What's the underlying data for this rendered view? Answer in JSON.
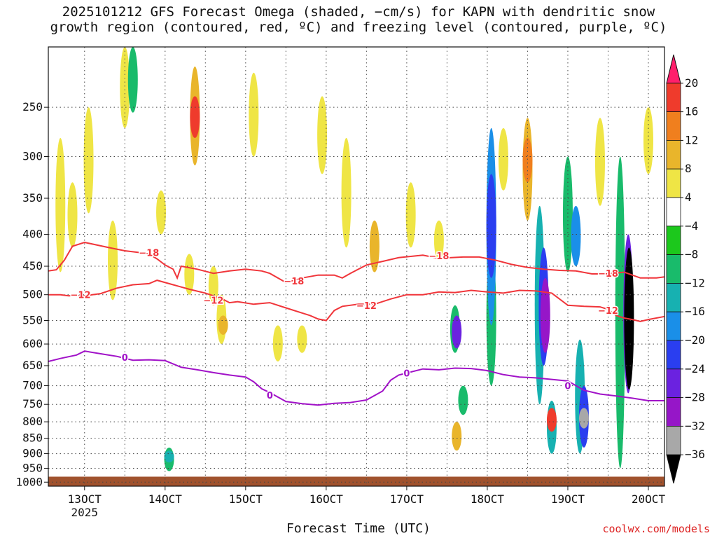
{
  "chart_data": {
    "type": "heatmap",
    "title_line1": "2025101212 GFS Forecast Omega (shaded, −cm/s) for KAPN with dendritic snow",
    "title_line2": "growth region (contoured, red, ºC) and freezing level (contoured, purple, ºC)",
    "xlabel": "Forecast Time (UTC)",
    "x_ticks": [
      "13OCT",
      "14OCT",
      "15OCT",
      "16OCT",
      "17OCT",
      "18OCT",
      "19OCT",
      "20OCT"
    ],
    "x_year_label": "2025",
    "x_range_hours": [
      -4.5,
      72
    ],
    "y_ticks": [
      250,
      300,
      350,
      400,
      450,
      500,
      550,
      600,
      650,
      700,
      750,
      800,
      850,
      900,
      950,
      1000
    ],
    "y_range_hpa": [
      200,
      1015
    ],
    "y_scale": "log-pressure",
    "grid": "dotted",
    "colorbar": {
      "labels": [
        "20",
        "16",
        "12",
        "8",
        "4",
        "−4",
        "−8",
        "−12",
        "−16",
        "−20",
        "−24",
        "−28",
        "−32",
        "−36"
      ],
      "colors": [
        "#ff1f6b",
        "#ef3b2c",
        "#f07f1e",
        "#e9b52b",
        "#efe545",
        "#ffffff",
        "#1cc81c",
        "#19bb6b",
        "#17b1b1",
        "#1a8fe8",
        "#2a3ef0",
        "#6b22e0",
        "#9616c8",
        "#a8a8a8",
        "#000000"
      ]
    },
    "contours": [
      {
        "label": "−18",
        "color": "#f0353a",
        "points": [
          [
            -4.5,
            458
          ],
          [
            -3.5,
            456
          ],
          [
            -2.5,
            440
          ],
          [
            -1.5,
            418
          ],
          [
            0,
            412
          ],
          [
            3,
            420
          ],
          [
            5,
            425
          ],
          [
            7,
            428
          ],
          [
            8,
            430
          ],
          [
            9,
            438
          ],
          [
            10,
            448
          ],
          [
            11,
            455
          ],
          [
            11.5,
            470
          ],
          [
            12,
            450
          ],
          [
            14,
            455
          ],
          [
            16,
            462
          ],
          [
            18,
            458
          ],
          [
            20,
            455
          ],
          [
            22,
            458
          ],
          [
            23,
            462
          ],
          [
            24,
            470
          ],
          [
            25,
            478
          ],
          [
            27,
            470
          ],
          [
            29,
            465
          ],
          [
            31,
            465
          ],
          [
            32,
            470
          ],
          [
            33,
            462
          ],
          [
            35,
            448
          ],
          [
            37,
            442
          ],
          [
            39,
            436
          ],
          [
            42,
            432
          ],
          [
            44,
            437
          ],
          [
            47,
            435
          ],
          [
            49,
            435
          ],
          [
            51,
            440
          ],
          [
            53,
            447
          ],
          [
            55,
            452
          ],
          [
            57,
            455
          ],
          [
            59,
            457
          ],
          [
            61,
            458
          ],
          [
            63,
            463
          ],
          [
            65,
            463
          ],
          [
            67,
            460
          ],
          [
            69,
            470
          ],
          [
            71,
            470
          ],
          [
            72,
            468
          ]
        ],
        "labels_at": [
          [
            8,
            428
          ],
          [
            26,
            475
          ],
          [
            44,
            433
          ],
          [
            65,
            462
          ]
        ]
      },
      {
        "label": "−12",
        "color": "#f0353a",
        "points": [
          [
            -4.5,
            500
          ],
          [
            -3,
            500
          ],
          [
            -2,
            502
          ],
          [
            0,
            502
          ],
          [
            2,
            498
          ],
          [
            4,
            488
          ],
          [
            6,
            482
          ],
          [
            8,
            480
          ],
          [
            9,
            474
          ],
          [
            11,
            482
          ],
          [
            13,
            490
          ],
          [
            15,
            497
          ],
          [
            17,
            507
          ],
          [
            18,
            515
          ],
          [
            19,
            513
          ],
          [
            21,
            518
          ],
          [
            23,
            515
          ],
          [
            25,
            525
          ],
          [
            27,
            535
          ],
          [
            28,
            540
          ],
          [
            29,
            547
          ],
          [
            30,
            550
          ],
          [
            31,
            530
          ],
          [
            32,
            522
          ],
          [
            34,
            518
          ],
          [
            36,
            518
          ],
          [
            38,
            508
          ],
          [
            40,
            500
          ],
          [
            42,
            500
          ],
          [
            44,
            495
          ],
          [
            46,
            496
          ],
          [
            48,
            492
          ],
          [
            50,
            495
          ],
          [
            52,
            497
          ],
          [
            54,
            492
          ],
          [
            56,
            493
          ],
          [
            58,
            497
          ],
          [
            60,
            520
          ],
          [
            62,
            522
          ],
          [
            64,
            523
          ],
          [
            65,
            528
          ],
          [
            66,
            540
          ],
          [
            67,
            545
          ],
          [
            68,
            548
          ],
          [
            69,
            552
          ],
          [
            70,
            548
          ],
          [
            72,
            542
          ]
        ],
        "labels_at": [
          [
            -0.5,
            500
          ],
          [
            16,
            510
          ],
          [
            35,
            520
          ],
          [
            65,
            530
          ]
        ]
      },
      {
        "label": "0",
        "color": "#a112c8",
        "points": [
          [
            -4.5,
            640
          ],
          [
            -3,
            633
          ],
          [
            -1,
            625
          ],
          [
            0,
            616
          ],
          [
            2,
            622
          ],
          [
            4,
            628
          ],
          [
            6,
            637
          ],
          [
            8,
            636
          ],
          [
            10,
            638
          ],
          [
            12,
            654
          ],
          [
            14,
            660
          ],
          [
            16,
            667
          ],
          [
            18,
            673
          ],
          [
            20,
            678
          ],
          [
            21,
            690
          ],
          [
            22,
            708
          ],
          [
            23,
            718
          ],
          [
            24,
            730
          ],
          [
            25,
            742
          ],
          [
            27,
            748
          ],
          [
            29,
            752
          ],
          [
            31,
            747
          ],
          [
            33,
            745
          ],
          [
            35,
            738
          ],
          [
            37,
            714
          ],
          [
            38,
            686
          ],
          [
            39,
            673
          ],
          [
            40,
            668
          ],
          [
            42,
            658
          ],
          [
            44,
            660
          ],
          [
            46,
            656
          ],
          [
            48,
            657
          ],
          [
            50,
            662
          ],
          [
            52,
            672
          ],
          [
            54,
            678
          ],
          [
            56,
            680
          ],
          [
            58,
            684
          ],
          [
            60,
            688
          ],
          [
            62,
            712
          ],
          [
            64,
            722
          ],
          [
            66,
            727
          ],
          [
            68,
            733
          ],
          [
            70,
            740
          ],
          [
            72,
            740
          ]
        ],
        "labels_at": [
          [
            5,
            630
          ],
          [
            23,
            725
          ],
          [
            40,
            668
          ],
          [
            60,
            700
          ]
        ]
      }
    ],
    "shaded_cells": [
      {
        "x": -3.0,
        "p1": 280,
        "p2": 460,
        "value": 6
      },
      {
        "x": -1.5,
        "p1": 330,
        "p2": 420,
        "value": 6
      },
      {
        "x": 0.5,
        "p1": 250,
        "p2": 370,
        "value": 6
      },
      {
        "x": 3.5,
        "p1": 380,
        "p2": 510,
        "value": 5
      },
      {
        "x": 5.0,
        "p1": 200,
        "p2": 270,
        "value": 6
      },
      {
        "x": 6.0,
        "p1": 200,
        "p2": 255,
        "value": -10
      },
      {
        "x": 9.5,
        "p1": 340,
        "p2": 400,
        "value": 5
      },
      {
        "x": 10.5,
        "p1": 880,
        "p2": 960,
        "value": -10
      },
      {
        "x": 10.5,
        "p1": 890,
        "p2": 930,
        "value": -14
      },
      {
        "x": 13.0,
        "p1": 430,
        "p2": 500,
        "value": 6
      },
      {
        "x": 13.7,
        "p1": 215,
        "p2": 310,
        "value": 9
      },
      {
        "x": 13.7,
        "p1": 240,
        "p2": 280,
        "value": 17
      },
      {
        "x": 16.0,
        "p1": 450,
        "p2": 520,
        "value": 6
      },
      {
        "x": 17.0,
        "p1": 500,
        "p2": 600,
        "value": 6
      },
      {
        "x": 17.2,
        "p1": 540,
        "p2": 580,
        "value": 10
      },
      {
        "x": 21.0,
        "p1": 220,
        "p2": 300,
        "value": 6
      },
      {
        "x": 24.0,
        "p1": 560,
        "p2": 640,
        "value": 6
      },
      {
        "x": 27.0,
        "p1": 560,
        "p2": 620,
        "value": 6
      },
      {
        "x": 29.5,
        "p1": 240,
        "p2": 320,
        "value": 6
      },
      {
        "x": 32.5,
        "p1": 280,
        "p2": 420,
        "value": 6
      },
      {
        "x": 36.0,
        "p1": 380,
        "p2": 460,
        "value": 9
      },
      {
        "x": 40.5,
        "p1": 330,
        "p2": 420,
        "value": 6
      },
      {
        "x": 44.0,
        "p1": 380,
        "p2": 440,
        "value": 6
      },
      {
        "x": 46.0,
        "p1": 520,
        "p2": 620,
        "value": -10
      },
      {
        "x": 46.2,
        "p1": 540,
        "p2": 610,
        "value": -26
      },
      {
        "x": 46.2,
        "p1": 800,
        "p2": 890,
        "value": 10
      },
      {
        "x": 47.0,
        "p1": 700,
        "p2": 780,
        "value": -8
      },
      {
        "x": 50.5,
        "p1": 420,
        "p2": 700,
        "value": -10
      },
      {
        "x": 50.5,
        "p1": 270,
        "p2": 560,
        "value": -18
      },
      {
        "x": 50.5,
        "p1": 320,
        "p2": 470,
        "value": -22
      },
      {
        "x": 52.0,
        "p1": 270,
        "p2": 340,
        "value": 6
      },
      {
        "x": 55.0,
        "p1": 260,
        "p2": 380,
        "value": 9
      },
      {
        "x": 55.0,
        "p1": 280,
        "p2": 330,
        "value": 14
      },
      {
        "x": 56.5,
        "p1": 360,
        "p2": 750,
        "value": -12
      },
      {
        "x": 57.0,
        "p1": 420,
        "p2": 650,
        "value": -22
      },
      {
        "x": 57.2,
        "p1": 470,
        "p2": 620,
        "value": -28
      },
      {
        "x": 58.0,
        "p1": 740,
        "p2": 900,
        "value": -14
      },
      {
        "x": 58.0,
        "p1": 760,
        "p2": 830,
        "value": 18
      },
      {
        "x": 60.0,
        "p1": 300,
        "p2": 460,
        "value": -10
      },
      {
        "x": 61.0,
        "p1": 360,
        "p2": 450,
        "value": -18
      },
      {
        "x": 61.5,
        "p1": 590,
        "p2": 900,
        "value": -12
      },
      {
        "x": 62.0,
        "p1": 700,
        "p2": 880,
        "value": -22
      },
      {
        "x": 62.0,
        "p1": 760,
        "p2": 820,
        "value": -34
      },
      {
        "x": 64.0,
        "p1": 260,
        "p2": 360,
        "value": 5
      },
      {
        "x": 66.5,
        "p1": 300,
        "p2": 950,
        "value": -10
      },
      {
        "x": 67.5,
        "p1": 400,
        "p2": 720,
        "value": -24
      },
      {
        "x": 67.6,
        "p1": 420,
        "p2": 710,
        "value": -40
      },
      {
        "x": 70.0,
        "p1": 250,
        "p2": 320,
        "value": 5
      }
    ],
    "terrain_top_hpa": 980,
    "terrain_color": "#a0522d"
  },
  "credit": "coolwx.com/models"
}
